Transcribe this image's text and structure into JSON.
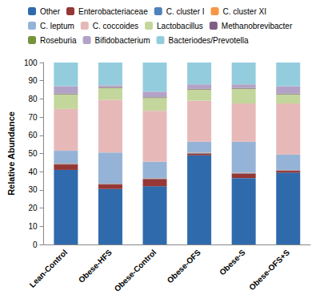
{
  "chart_data": {
    "type": "bar",
    "stacked": true,
    "y_label": "Relative Abundance",
    "categories": [
      "Lean-Control",
      "Obese-HFS",
      "Obese-Control",
      "Obese-OFS",
      "Obese-S",
      "Obese-OFS+S"
    ],
    "ylim": [
      0,
      100
    ],
    "yticks": [
      0,
      10,
      20,
      30,
      40,
      50,
      60,
      70,
      80,
      90,
      100
    ],
    "grid": false,
    "legend": "top",
    "series": [
      {
        "name": "Other",
        "color": "#2f6aad",
        "values": [
          41,
          30.5,
          32,
          49,
          36.5,
          39.5
        ]
      },
      {
        "name": "Enterobacteriaceae",
        "color": "#953735",
        "values": [
          3,
          2.5,
          4,
          1,
          2.5,
          1
        ]
      },
      {
        "name": "C. cluster I",
        "color": "#4f81bd",
        "values": [
          0.3,
          0.3,
          0.3,
          0.3,
          0.3,
          0.3
        ]
      },
      {
        "name": "C. cluster XI",
        "color": "#f79646",
        "values": [
          0.2,
          0.2,
          0.2,
          0.2,
          0.2,
          0.2
        ]
      },
      {
        "name": "C. leptum",
        "color": "#95b3d7",
        "values": [
          7,
          17,
          9,
          6,
          17,
          8.5
        ]
      },
      {
        "name": "C. coccoides",
        "color": "#e6b9b8",
        "values": [
          23,
          29,
          28,
          22.5,
          21,
          28
        ]
      },
      {
        "name": "Lactobacillus",
        "color": "#c3d69b",
        "values": [
          8,
          6.5,
          7,
          6,
          8,
          5
        ]
      },
      {
        "name": "Methanobrevibacter",
        "color": "#7f6084",
        "values": [
          0.3,
          0.3,
          0.3,
          0.3,
          0.3,
          0.3
        ]
      },
      {
        "name": "Roseburia",
        "color": "#77933c",
        "values": [
          0.2,
          0.2,
          0.2,
          0.2,
          0.2,
          0.2
        ]
      },
      {
        "name": "Bifidobacterium",
        "color": "#b3a2c7",
        "values": [
          4,
          1,
          3,
          2.5,
          2,
          4
        ]
      },
      {
        "name": "Bacteriodes/Prevotella",
        "color": "#93cddd",
        "values": [
          13,
          12.5,
          16,
          12,
          12,
          13
        ]
      }
    ]
  }
}
